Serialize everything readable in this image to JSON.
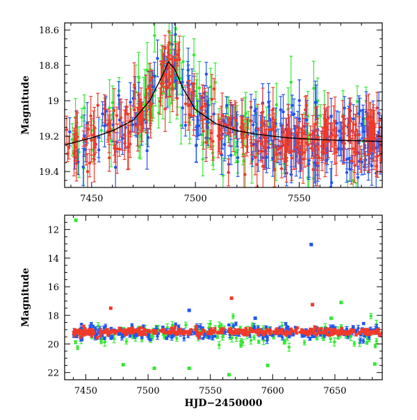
{
  "chart_data": [
    {
      "type": "scatter",
      "title": "",
      "xlabel": "",
      "ylabel": "Magnitude",
      "xlim": [
        7437,
        7590
      ],
      "ylim": [
        19.49,
        18.56
      ],
      "y_inverted": true,
      "xticks": [
        7450,
        7500,
        7550
      ],
      "xtick_labels": [
        "7450",
        "7500",
        "7550"
      ],
      "yticks": [
        18.6,
        18.8,
        19,
        19.2,
        19.4
      ],
      "ytick_labels": [
        "18.6",
        "18.8",
        "19",
        "19.2",
        "19.4"
      ],
      "grid": false,
      "legend": "none",
      "error_bars": true,
      "model_curve": {
        "color": "#000000",
        "x": [
          7437,
          7450,
          7460,
          7470,
          7478,
          7484,
          7487,
          7490,
          7494,
          7500,
          7510,
          7520,
          7530,
          7545,
          7560,
          7590
        ],
        "y": [
          19.25,
          19.21,
          19.17,
          19.11,
          19.0,
          18.86,
          18.78,
          18.82,
          18.93,
          19.05,
          19.13,
          19.17,
          19.19,
          19.21,
          19.22,
          19.23
        ]
      },
      "series": [
        {
          "color": "#33e833",
          "density": [
            [
              7437,
              7470,
              0.5
            ],
            [
              7470,
              7500,
              1.6
            ],
            [
              7500,
              7530,
              1.1
            ],
            [
              7530,
              7560,
              0.6
            ],
            [
              7560,
              7590,
              0.35
            ]
          ],
          "scatter": 0.13,
          "err": [
            0.05,
            0.16
          ]
        },
        {
          "color": "#1f55f0",
          "density": [
            [
              7437,
              7470,
              0.7
            ],
            [
              7470,
              7500,
              1.3
            ],
            [
              7500,
              7530,
              1.4
            ],
            [
              7530,
              7560,
              2.2
            ],
            [
              7560,
              7590,
              2.5
            ]
          ],
          "scatter": 0.1,
          "err": [
            0.04,
            0.13
          ]
        },
        {
          "color": "#f03a2a",
          "density": [
            [
              7437,
              7470,
              1.6
            ],
            [
              7470,
              7500,
              2.0
            ],
            [
              7500,
              7530,
              1.3
            ],
            [
              7530,
              7560,
              2.2
            ],
            [
              7560,
              7590,
              2.4
            ]
          ],
          "scatter": 0.09,
          "err": [
            0.04,
            0.14
          ]
        }
      ]
    },
    {
      "type": "scatter",
      "title": "",
      "xlabel": "HJD−2450000",
      "ylabel": "Magnitude",
      "xlim": [
        7433,
        7688
      ],
      "ylim": [
        22.5,
        11.0
      ],
      "y_inverted": true,
      "xticks": [
        7450,
        7500,
        7550,
        7600,
        7650
      ],
      "xtick_labels": [
        "7450",
        "7500",
        "7550",
        "7600",
        "7650"
      ],
      "yticks": [
        12,
        14,
        16,
        18,
        20,
        22
      ],
      "ytick_labels": [
        "12",
        "14",
        "16",
        "18",
        "20",
        "22"
      ],
      "grid": false,
      "legend": "none",
      "error_bars": true,
      "outliers": [
        {
          "color": "#33e833",
          "x": 7442,
          "y": 11.35
        },
        {
          "color": "#1f55f0",
          "x": 7631,
          "y": 13.05
        },
        {
          "color": "#f03a2a",
          "x": 7567,
          "y": 16.8
        },
        {
          "color": "#f03a2a",
          "x": 7632,
          "y": 17.25
        },
        {
          "color": "#f03a2a",
          "x": 7470,
          "y": 17.5
        },
        {
          "color": "#33e833",
          "x": 7655,
          "y": 17.1
        },
        {
          "color": "#33e833",
          "x": 7647,
          "y": 18.2
        },
        {
          "color": "#33e833",
          "x": 7565,
          "y": 22.15
        },
        {
          "color": "#33e833",
          "x": 7533,
          "y": 21.7
        },
        {
          "color": "#33e833",
          "x": 7505,
          "y": 21.7
        },
        {
          "color": "#33e833",
          "x": 7480,
          "y": 21.45
        },
        {
          "color": "#33e833",
          "x": 7596,
          "y": 21.5
        },
        {
          "color": "#33e833",
          "x": 7682,
          "y": 21.4
        },
        {
          "color": "#1f55f0",
          "x": 7533,
          "y": 17.65
        },
        {
          "color": "#1f55f0",
          "x": 7586,
          "y": 18.2
        }
      ],
      "series": [
        {
          "color": "#33e833",
          "density": [
            [
              7440,
              7690,
              0.55
            ]
          ],
          "center": 19.3,
          "scatter": 0.45,
          "err": [
            0.1,
            0.3
          ]
        },
        {
          "color": "#1f55f0",
          "density": [
            [
              7440,
              7690,
              0.9
            ]
          ],
          "center": 19.2,
          "scatter": 0.25,
          "err": [
            0.05,
            0.2
          ]
        },
        {
          "color": "#f03a2a",
          "density": [
            [
              7440,
              7690,
              1.6
            ]
          ],
          "center": 19.15,
          "scatter": 0.12,
          "err": [
            0.04,
            0.12
          ]
        }
      ]
    }
  ]
}
